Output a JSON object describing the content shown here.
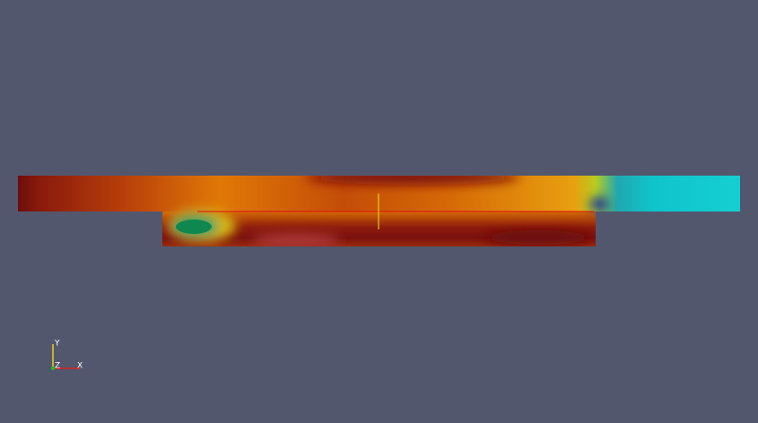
{
  "axes": {
    "y": "Y",
    "z": "Z",
    "x": "X"
  }
}
